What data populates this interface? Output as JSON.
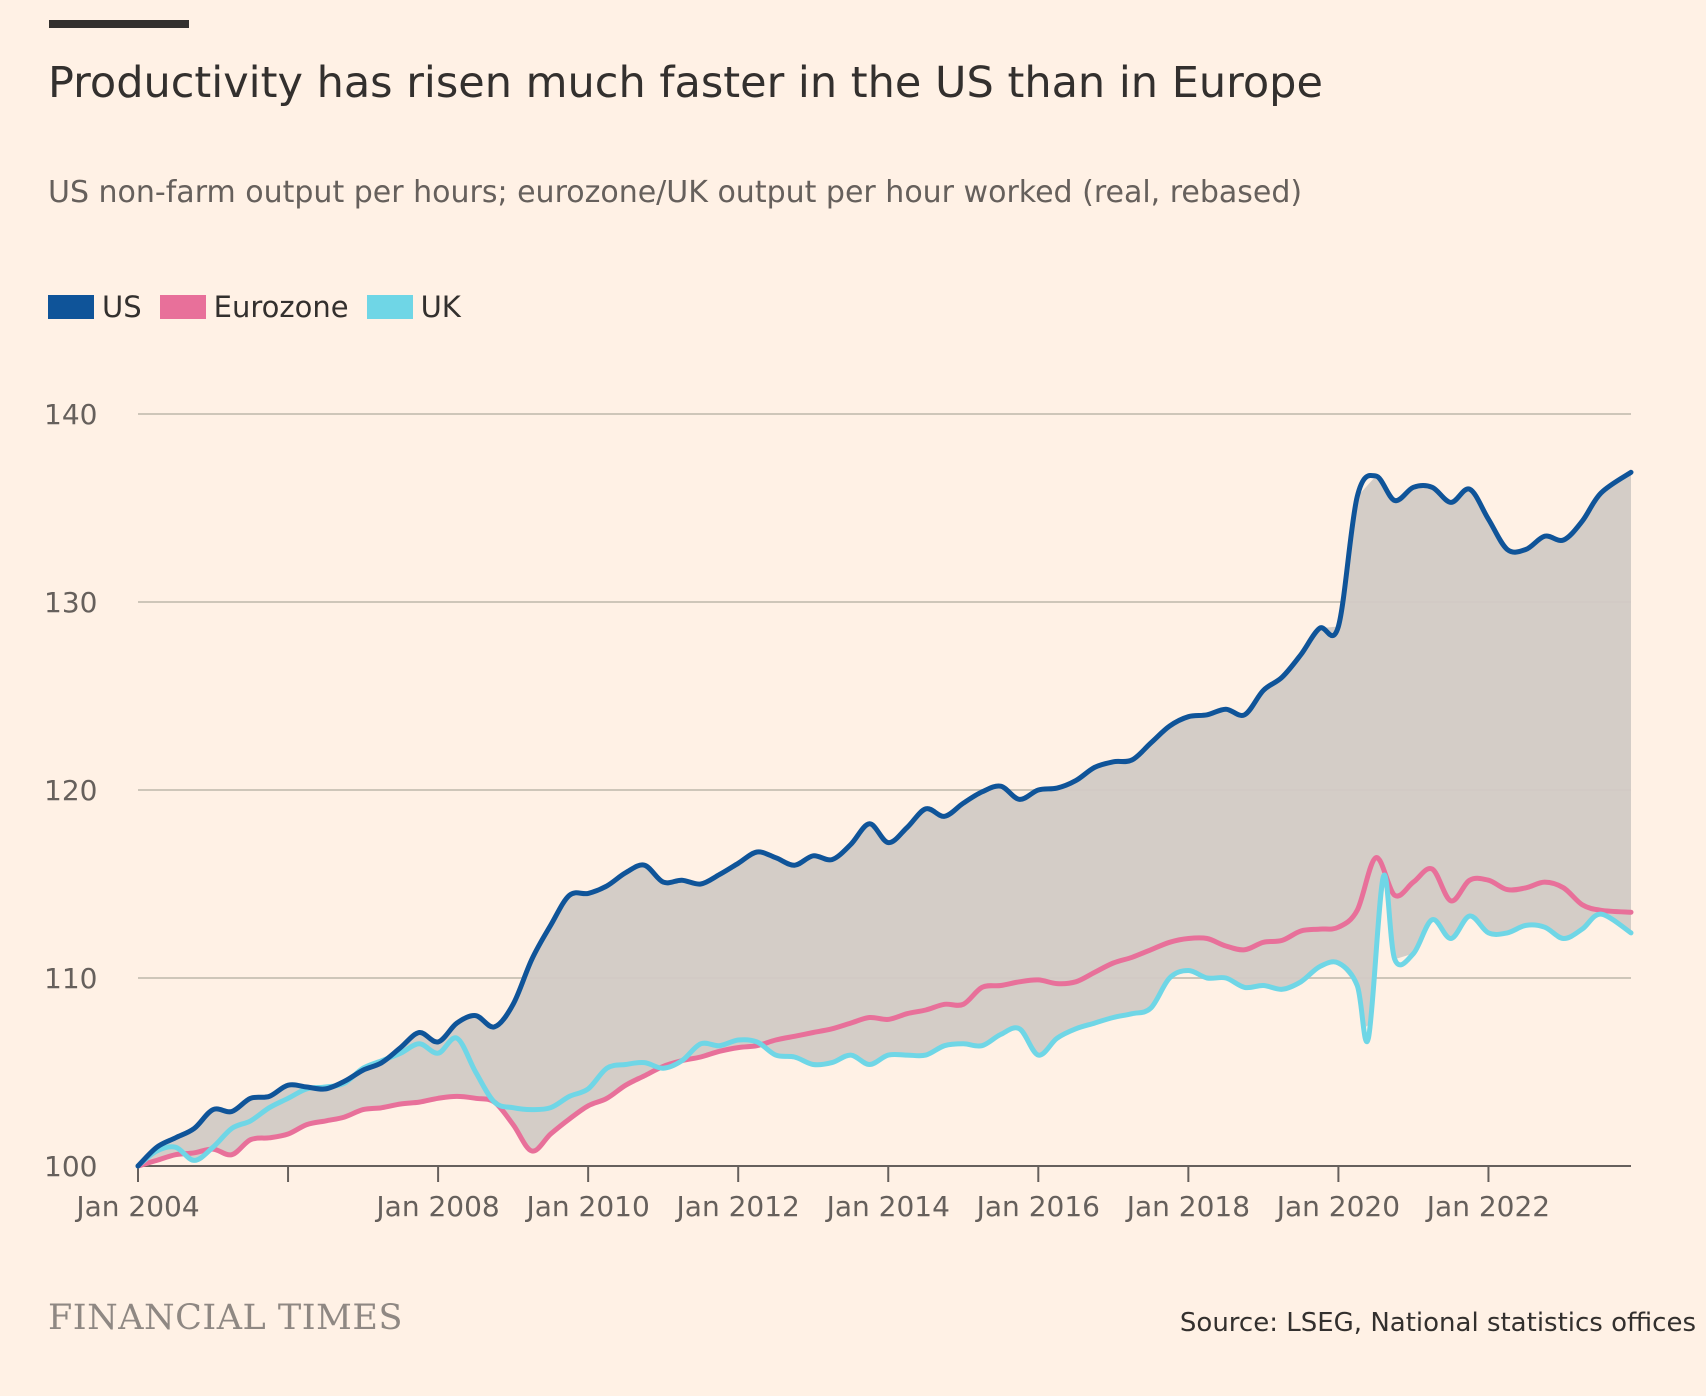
{
  "header": {
    "title": "Productivity has risen much faster in the US than in Europe",
    "subtitle": "US non-farm output per hours; eurozone/UK output per hour worked (real, rebased)"
  },
  "footer": {
    "logo_text": "FINANCIAL TIMES",
    "source": "Source: LSEG, National statistics offices"
  },
  "colors": {
    "background": "#FFF1E5",
    "us": "#0F5499",
    "eurozone": "#E8709A",
    "uk": "#6FD6E6",
    "fill_gap": "#D2CAC5",
    "grid": "#CEC6B9",
    "axis": "#66605C"
  },
  "chart_data": {
    "type": "line",
    "title": "Productivity has risen much faster in the US than in Europe",
    "subtitle": "US non-farm output per hours; eurozone/UK output per hour worked (real, rebased)",
    "xlabel": "",
    "ylabel": "",
    "ylim": [
      100,
      140
    ],
    "yticks": [
      100,
      110,
      120,
      130,
      140
    ],
    "xlim": [
      2004.0,
      2023.9
    ],
    "xticks": [
      2004,
      2006,
      2008,
      2010,
      2012,
      2014,
      2016,
      2018,
      2020,
      2022
    ],
    "xtick_labels": [
      "Jan 2004",
      "",
      "Jan 2008",
      "Jan 2010",
      "Jan 2012",
      "Jan 2014",
      "Jan 2016",
      "Jan 2018",
      "Jan 2020",
      "Jan 2022"
    ],
    "grid": true,
    "legend_position": "top-left",
    "shading": "area between US and the lower of Eurozone/UK",
    "series": [
      {
        "name": "US",
        "color": "#0F5499",
        "points": [
          [
            2004.0,
            100.0
          ],
          [
            2004.25,
            101.0
          ],
          [
            2004.5,
            101.5
          ],
          [
            2004.75,
            102.0
          ],
          [
            2005.0,
            103.0
          ],
          [
            2005.25,
            102.9
          ],
          [
            2005.5,
            103.6
          ],
          [
            2005.75,
            103.7
          ],
          [
            2006.0,
            104.3
          ],
          [
            2006.25,
            104.2
          ],
          [
            2006.5,
            104.1
          ],
          [
            2006.75,
            104.5
          ],
          [
            2007.0,
            105.1
          ],
          [
            2007.25,
            105.5
          ],
          [
            2007.5,
            106.3
          ],
          [
            2007.75,
            107.1
          ],
          [
            2008.0,
            106.6
          ],
          [
            2008.25,
            107.6
          ],
          [
            2008.5,
            108.0
          ],
          [
            2008.75,
            107.4
          ],
          [
            2009.0,
            108.6
          ],
          [
            2009.25,
            111.0
          ],
          [
            2009.5,
            112.8
          ],
          [
            2009.75,
            114.4
          ],
          [
            2010.0,
            114.5
          ],
          [
            2010.25,
            114.9
          ],
          [
            2010.5,
            115.6
          ],
          [
            2010.75,
            116.0
          ],
          [
            2011.0,
            115.1
          ],
          [
            2011.25,
            115.2
          ],
          [
            2011.5,
            115.0
          ],
          [
            2011.75,
            115.5
          ],
          [
            2012.0,
            116.1
          ],
          [
            2012.25,
            116.7
          ],
          [
            2012.5,
            116.4
          ],
          [
            2012.75,
            116.0
          ],
          [
            2013.0,
            116.5
          ],
          [
            2013.25,
            116.3
          ],
          [
            2013.5,
            117.1
          ],
          [
            2013.75,
            118.2
          ],
          [
            2014.0,
            117.2
          ],
          [
            2014.25,
            118.0
          ],
          [
            2014.5,
            119.0
          ],
          [
            2014.75,
            118.6
          ],
          [
            2015.0,
            119.3
          ],
          [
            2015.25,
            119.9
          ],
          [
            2015.5,
            120.2
          ],
          [
            2015.75,
            119.5
          ],
          [
            2016.0,
            120.0
          ],
          [
            2016.25,
            120.1
          ],
          [
            2016.5,
            120.5
          ],
          [
            2016.75,
            121.2
          ],
          [
            2017.0,
            121.5
          ],
          [
            2017.25,
            121.6
          ],
          [
            2017.5,
            122.5
          ],
          [
            2017.75,
            123.4
          ],
          [
            2018.0,
            123.9
          ],
          [
            2018.25,
            124.0
          ],
          [
            2018.5,
            124.3
          ],
          [
            2018.75,
            124.0
          ],
          [
            2019.0,
            125.3
          ],
          [
            2019.25,
            126.0
          ],
          [
            2019.5,
            127.2
          ],
          [
            2019.75,
            128.6
          ],
          [
            2020.0,
            128.7
          ],
          [
            2020.25,
            135.6
          ],
          [
            2020.5,
            136.7
          ],
          [
            2020.75,
            135.4
          ],
          [
            2021.0,
            136.1
          ],
          [
            2021.25,
            136.1
          ],
          [
            2021.5,
            135.3
          ],
          [
            2021.75,
            136.0
          ],
          [
            2022.0,
            134.4
          ],
          [
            2022.25,
            132.8
          ],
          [
            2022.5,
            132.8
          ],
          [
            2022.75,
            133.5
          ],
          [
            2023.0,
            133.3
          ],
          [
            2023.25,
            134.3
          ],
          [
            2023.5,
            135.8
          ],
          [
            2023.9,
            136.9
          ]
        ]
      },
      {
        "name": "Eurozone",
        "color": "#E8709A",
        "points": [
          [
            2004.0,
            100.0
          ],
          [
            2004.25,
            100.3
          ],
          [
            2004.5,
            100.6
          ],
          [
            2004.75,
            100.7
          ],
          [
            2005.0,
            100.9
          ],
          [
            2005.25,
            100.6
          ],
          [
            2005.5,
            101.4
          ],
          [
            2005.75,
            101.5
          ],
          [
            2006.0,
            101.7
          ],
          [
            2006.25,
            102.2
          ],
          [
            2006.5,
            102.4
          ],
          [
            2006.75,
            102.6
          ],
          [
            2007.0,
            103.0
          ],
          [
            2007.25,
            103.1
          ],
          [
            2007.5,
            103.3
          ],
          [
            2007.75,
            103.4
          ],
          [
            2008.0,
            103.6
          ],
          [
            2008.25,
            103.7
          ],
          [
            2008.5,
            103.6
          ],
          [
            2008.75,
            103.4
          ],
          [
            2009.0,
            102.2
          ],
          [
            2009.25,
            100.8
          ],
          [
            2009.5,
            101.7
          ],
          [
            2009.75,
            102.5
          ],
          [
            2010.0,
            103.2
          ],
          [
            2010.25,
            103.6
          ],
          [
            2010.5,
            104.3
          ],
          [
            2010.75,
            104.8
          ],
          [
            2011.0,
            105.3
          ],
          [
            2011.25,
            105.6
          ],
          [
            2011.5,
            105.8
          ],
          [
            2011.75,
            106.1
          ],
          [
            2012.0,
            106.3
          ],
          [
            2012.25,
            106.4
          ],
          [
            2012.5,
            106.7
          ],
          [
            2012.75,
            106.9
          ],
          [
            2013.0,
            107.1
          ],
          [
            2013.25,
            107.3
          ],
          [
            2013.5,
            107.6
          ],
          [
            2013.75,
            107.9
          ],
          [
            2014.0,
            107.8
          ],
          [
            2014.25,
            108.1
          ],
          [
            2014.5,
            108.3
          ],
          [
            2014.75,
            108.6
          ],
          [
            2015.0,
            108.6
          ],
          [
            2015.25,
            109.5
          ],
          [
            2015.5,
            109.6
          ],
          [
            2015.75,
            109.8
          ],
          [
            2016.0,
            109.9
          ],
          [
            2016.25,
            109.7
          ],
          [
            2016.5,
            109.8
          ],
          [
            2016.75,
            110.3
          ],
          [
            2017.0,
            110.8
          ],
          [
            2017.25,
            111.1
          ],
          [
            2017.5,
            111.5
          ],
          [
            2017.75,
            111.9
          ],
          [
            2018.0,
            112.1
          ],
          [
            2018.25,
            112.1
          ],
          [
            2018.5,
            111.7
          ],
          [
            2018.75,
            111.5
          ],
          [
            2019.0,
            111.9
          ],
          [
            2019.25,
            112.0
          ],
          [
            2019.5,
            112.5
          ],
          [
            2019.75,
            112.6
          ],
          [
            2020.0,
            112.7
          ],
          [
            2020.25,
            113.6
          ],
          [
            2020.5,
            116.4
          ],
          [
            2020.75,
            114.4
          ],
          [
            2021.0,
            115.1
          ],
          [
            2021.25,
            115.8
          ],
          [
            2021.5,
            114.1
          ],
          [
            2021.75,
            115.2
          ],
          [
            2022.0,
            115.2
          ],
          [
            2022.25,
            114.7
          ],
          [
            2022.5,
            114.8
          ],
          [
            2022.75,
            115.1
          ],
          [
            2023.0,
            114.8
          ],
          [
            2023.25,
            113.9
          ],
          [
            2023.5,
            113.6
          ],
          [
            2023.9,
            113.5
          ]
        ]
      },
      {
        "name": "UK",
        "color": "#6FD6E6",
        "points": [
          [
            2004.0,
            100.0
          ],
          [
            2004.25,
            100.8
          ],
          [
            2004.5,
            101.0
          ],
          [
            2004.75,
            100.3
          ],
          [
            2005.0,
            101.0
          ],
          [
            2005.25,
            102.0
          ],
          [
            2005.5,
            102.4
          ],
          [
            2005.75,
            103.1
          ],
          [
            2006.0,
            103.6
          ],
          [
            2006.25,
            104.1
          ],
          [
            2006.5,
            104.2
          ],
          [
            2006.75,
            104.4
          ],
          [
            2007.0,
            105.2
          ],
          [
            2007.25,
            105.6
          ],
          [
            2007.5,
            106.0
          ],
          [
            2007.75,
            106.5
          ],
          [
            2008.0,
            106.0
          ],
          [
            2008.25,
            106.8
          ],
          [
            2008.5,
            105.0
          ],
          [
            2008.75,
            103.4
          ],
          [
            2009.0,
            103.1
          ],
          [
            2009.25,
            103.0
          ],
          [
            2009.5,
            103.1
          ],
          [
            2009.75,
            103.7
          ],
          [
            2010.0,
            104.1
          ],
          [
            2010.25,
            105.2
          ],
          [
            2010.5,
            105.4
          ],
          [
            2010.75,
            105.5
          ],
          [
            2011.0,
            105.2
          ],
          [
            2011.25,
            105.6
          ],
          [
            2011.5,
            106.5
          ],
          [
            2011.75,
            106.4
          ],
          [
            2012.0,
            106.7
          ],
          [
            2012.25,
            106.6
          ],
          [
            2012.5,
            105.9
          ],
          [
            2012.75,
            105.8
          ],
          [
            2013.0,
            105.4
          ],
          [
            2013.25,
            105.5
          ],
          [
            2013.5,
            105.9
          ],
          [
            2013.75,
            105.4
          ],
          [
            2014.0,
            105.9
          ],
          [
            2014.25,
            105.9
          ],
          [
            2014.5,
            105.9
          ],
          [
            2014.75,
            106.4
          ],
          [
            2015.0,
            106.5
          ],
          [
            2015.25,
            106.4
          ],
          [
            2015.5,
            107.0
          ],
          [
            2015.75,
            107.3
          ],
          [
            2016.0,
            105.9
          ],
          [
            2016.25,
            106.8
          ],
          [
            2016.5,
            107.3
          ],
          [
            2016.75,
            107.6
          ],
          [
            2017.0,
            107.9
          ],
          [
            2017.25,
            108.1
          ],
          [
            2017.5,
            108.4
          ],
          [
            2017.75,
            110.0
          ],
          [
            2018.0,
            110.4
          ],
          [
            2018.25,
            110.0
          ],
          [
            2018.5,
            110.0
          ],
          [
            2018.75,
            109.5
          ],
          [
            2019.0,
            109.6
          ],
          [
            2019.25,
            109.4
          ],
          [
            2019.5,
            109.8
          ],
          [
            2019.75,
            110.6
          ],
          [
            2020.0,
            110.8
          ],
          [
            2020.25,
            109.6
          ],
          [
            2020.4,
            106.8
          ],
          [
            2020.6,
            115.4
          ],
          [
            2020.75,
            111.0
          ],
          [
            2021.0,
            111.3
          ],
          [
            2021.25,
            113.1
          ],
          [
            2021.5,
            112.1
          ],
          [
            2021.75,
            113.3
          ],
          [
            2022.0,
            112.4
          ],
          [
            2022.25,
            112.4
          ],
          [
            2022.5,
            112.8
          ],
          [
            2022.75,
            112.7
          ],
          [
            2023.0,
            112.1
          ],
          [
            2023.25,
            112.6
          ],
          [
            2023.5,
            113.4
          ],
          [
            2023.9,
            112.4
          ]
        ]
      }
    ]
  }
}
